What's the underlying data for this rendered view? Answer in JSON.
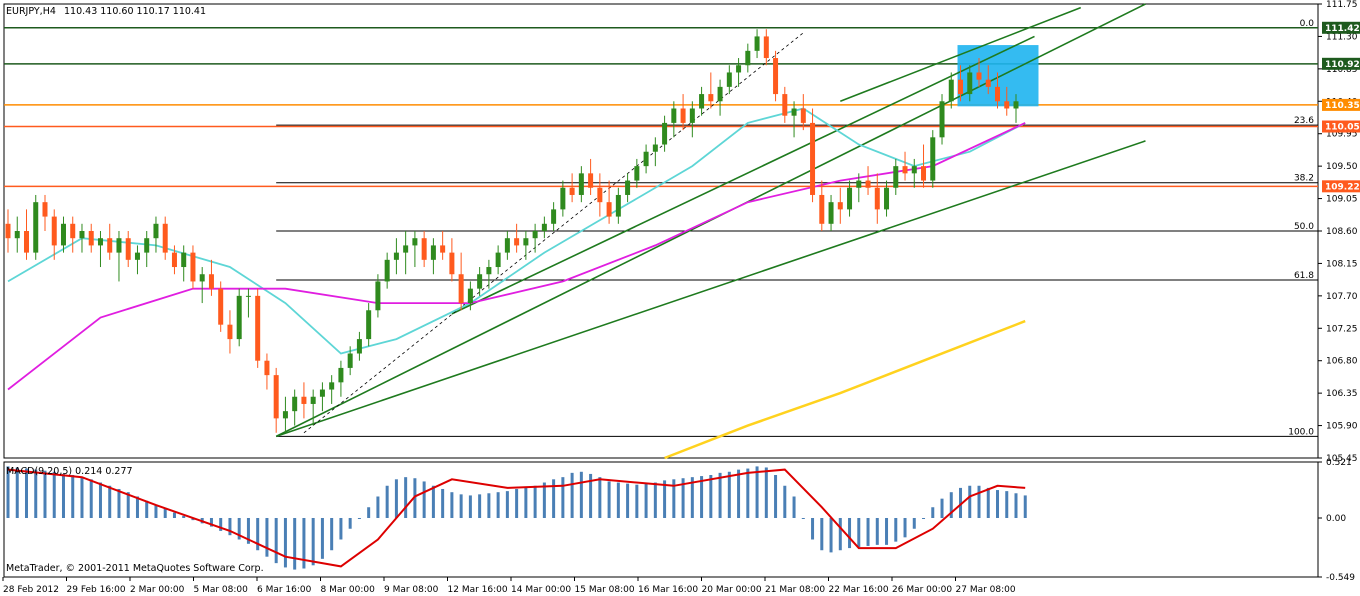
{
  "header": {
    "symbol": "EURJPY,H4",
    "ohlc": "110.43 110.60 110.17 110.41"
  },
  "macd_panel": {
    "label": "MACD(9,20,5) 0.214 0.277",
    "copyright": "MetaTrader, © 2001-2011 MetaQuotes Software Corp."
  },
  "colors": {
    "bull": "#2f8a1e",
    "bear": "#ff5a1e",
    "ma_fast": "#5ed6d6",
    "ma_mid": "#e01ee0",
    "ma_slow": "#ffd21e",
    "trend": "#1e7a1e",
    "fib_line": "#000000",
    "resistance": "#1e5a1e",
    "support_orange": "#ff5a1e",
    "highlight_box": "#1eb4f0",
    "macd_hist": "#4a7fb5",
    "macd_signal": "#dd0000"
  },
  "chart_data": [
    {
      "type": "candlestick",
      "title": "EURJPY,H4",
      "x_ticks": [
        "28 Feb 2012",
        "29 Feb 16:00",
        "2 Mar 00:00",
        "5 Mar 08:00",
        "6 Mar 16:00",
        "8 Mar 00:00",
        "9 Mar 08:00",
        "12 Mar 16:00",
        "14 Mar 00:00",
        "15 Mar 08:00",
        "16 Mar 16:00",
        "20 Mar 00:00",
        "21 Mar 08:00",
        "22 Mar 16:00",
        "26 Mar 00:00",
        "27 Mar 08:00"
      ],
      "y_ticks": [
        111.75,
        111.3,
        110.85,
        110.4,
        109.95,
        109.5,
        109.05,
        108.6,
        108.15,
        107.7,
        107.25,
        106.8,
        106.35,
        105.9,
        105.45
      ],
      "ylim": [
        105.45,
        111.75
      ],
      "price_labels": [
        {
          "text": "111.42",
          "value": 111.42,
          "color": "#1e5a1e"
        },
        {
          "text": "110.92",
          "value": 110.92,
          "color": "#1e5a1e"
        },
        {
          "text": "110.35",
          "value": 110.35,
          "color": "#ff8c00"
        },
        {
          "text": "110.05",
          "value": 110.05,
          "color": "#ff5a1e"
        },
        {
          "text": "109.22",
          "value": 109.22,
          "color": "#ff5a1e"
        }
      ],
      "fib_levels": [
        {
          "label": "0.0",
          "value": 111.42
        },
        {
          "label": "23.6",
          "value": 110.07
        },
        {
          "label": "38.2",
          "value": 109.27
        },
        {
          "label": "50.0",
          "value": 108.6
        },
        {
          "label": "61.8",
          "value": 107.92
        },
        {
          "label": "100.0",
          "value": 105.75
        }
      ],
      "candles": [
        [
          108.7,
          108.9,
          108.3,
          108.5
        ],
        [
          108.5,
          108.8,
          108.3,
          108.6
        ],
        [
          108.6,
          108.9,
          108.2,
          108.3
        ],
        [
          108.3,
          109.1,
          108.2,
          109.0
        ],
        [
          109.0,
          109.1,
          108.6,
          108.8
        ],
        [
          108.8,
          108.9,
          108.2,
          108.4
        ],
        [
          108.4,
          108.8,
          108.3,
          108.7
        ],
        [
          108.7,
          108.8,
          108.3,
          108.5
        ],
        [
          108.5,
          108.7,
          108.3,
          108.6
        ],
        [
          108.6,
          108.7,
          108.3,
          108.4
        ],
        [
          108.4,
          108.6,
          108.1,
          108.5
        ],
        [
          108.5,
          108.7,
          108.2,
          108.3
        ],
        [
          108.3,
          108.6,
          107.9,
          108.5
        ],
        [
          108.5,
          108.6,
          108.1,
          108.2
        ],
        [
          108.2,
          108.4,
          108.0,
          108.3
        ],
        [
          108.3,
          108.6,
          108.1,
          108.5
        ],
        [
          108.5,
          108.8,
          108.3,
          108.7
        ],
        [
          108.7,
          108.8,
          108.2,
          108.3
        ],
        [
          108.3,
          108.4,
          108.0,
          108.1
        ],
        [
          108.1,
          108.4,
          107.9,
          108.3
        ],
        [
          108.3,
          108.4,
          107.8,
          107.9
        ],
        [
          107.9,
          108.1,
          107.6,
          108.0
        ],
        [
          108.0,
          108.2,
          107.7,
          107.8
        ],
        [
          107.8,
          107.9,
          107.2,
          107.3
        ],
        [
          107.3,
          107.5,
          106.9,
          107.1
        ],
        [
          107.1,
          107.8,
          107.0,
          107.7
        ],
        [
          107.7,
          107.8,
          107.4,
          107.7
        ],
        [
          107.7,
          107.8,
          106.7,
          106.8
        ],
        [
          106.8,
          106.9,
          106.4,
          106.6
        ],
        [
          106.6,
          106.7,
          105.8,
          106.0
        ],
        [
          106.0,
          106.3,
          105.8,
          106.1
        ],
        [
          106.1,
          106.4,
          105.9,
          106.3
        ],
        [
          106.3,
          106.5,
          106.0,
          106.2
        ],
        [
          106.2,
          106.4,
          105.9,
          106.3
        ],
        [
          106.3,
          106.5,
          106.1,
          106.4
        ],
        [
          106.4,
          106.6,
          106.2,
          106.5
        ],
        [
          106.5,
          106.8,
          106.3,
          106.7
        ],
        [
          106.7,
          107.0,
          106.6,
          106.9
        ],
        [
          106.9,
          107.2,
          106.8,
          107.1
        ],
        [
          107.1,
          107.6,
          107.0,
          107.5
        ],
        [
          107.5,
          108.0,
          107.4,
          107.9
        ],
        [
          107.9,
          108.3,
          107.8,
          108.2
        ],
        [
          108.2,
          108.5,
          108.0,
          108.3
        ],
        [
          108.3,
          108.6,
          108.0,
          108.4
        ],
        [
          108.4,
          108.6,
          108.1,
          108.5
        ],
        [
          108.5,
          108.6,
          108.1,
          108.2
        ],
        [
          108.2,
          108.5,
          108.0,
          108.4
        ],
        [
          108.4,
          108.6,
          108.2,
          108.3
        ],
        [
          108.3,
          108.5,
          107.9,
          108.0
        ],
        [
          108.0,
          108.3,
          107.5,
          107.6
        ],
        [
          107.6,
          107.9,
          107.5,
          107.8
        ],
        [
          107.8,
          108.1,
          107.7,
          108.0
        ],
        [
          108.0,
          108.2,
          107.8,
          108.1
        ],
        [
          108.1,
          108.4,
          108.0,
          108.3
        ],
        [
          108.3,
          108.6,
          108.2,
          108.5
        ],
        [
          108.5,
          108.7,
          108.3,
          108.4
        ],
        [
          108.4,
          108.6,
          108.2,
          108.5
        ],
        [
          108.5,
          108.7,
          108.3,
          108.6
        ],
        [
          108.6,
          108.8,
          108.5,
          108.7
        ],
        [
          108.7,
          109.0,
          108.6,
          108.9
        ],
        [
          108.9,
          109.3,
          108.8,
          109.2
        ],
        [
          109.2,
          109.4,
          109.0,
          109.1
        ],
        [
          109.1,
          109.5,
          109.0,
          109.4
        ],
        [
          109.4,
          109.6,
          109.1,
          109.2
        ],
        [
          109.2,
          109.4,
          108.8,
          109.0
        ],
        [
          109.0,
          109.3,
          108.7,
          108.8
        ],
        [
          108.8,
          109.2,
          108.7,
          109.1
        ],
        [
          109.1,
          109.4,
          109.0,
          109.3
        ],
        [
          109.3,
          109.6,
          109.2,
          109.5
        ],
        [
          109.5,
          109.8,
          109.4,
          109.7
        ],
        [
          109.7,
          109.9,
          109.5,
          109.8
        ],
        [
          109.8,
          110.2,
          109.7,
          110.1
        ],
        [
          110.1,
          110.4,
          109.9,
          110.3
        ],
        [
          110.3,
          110.5,
          110.0,
          110.1
        ],
        [
          110.1,
          110.4,
          109.9,
          110.3
        ],
        [
          110.3,
          110.6,
          110.2,
          110.5
        ],
        [
          110.5,
          110.8,
          110.3,
          110.4
        ],
        [
          110.4,
          110.7,
          110.2,
          110.6
        ],
        [
          110.6,
          110.9,
          110.5,
          110.8
        ],
        [
          110.8,
          111.0,
          110.6,
          110.9
        ],
        [
          110.9,
          111.2,
          110.8,
          111.1
        ],
        [
          111.1,
          111.4,
          111.0,
          111.3
        ],
        [
          111.3,
          111.4,
          110.9,
          111.0
        ],
        [
          111.0,
          111.1,
          110.4,
          110.5
        ],
        [
          110.5,
          110.6,
          110.1,
          110.2
        ],
        [
          110.2,
          110.4,
          109.9,
          110.3
        ],
        [
          110.3,
          110.5,
          110.0,
          110.1
        ],
        [
          110.1,
          110.3,
          109.0,
          109.1
        ],
        [
          109.1,
          109.3,
          108.6,
          108.7
        ],
        [
          108.7,
          109.1,
          108.6,
          109.0
        ],
        [
          109.0,
          109.2,
          108.7,
          108.9
        ],
        [
          108.9,
          109.3,
          108.8,
          109.2
        ],
        [
          109.2,
          109.4,
          109.0,
          109.3
        ],
        [
          109.3,
          109.5,
          109.1,
          109.2
        ],
        [
          109.2,
          109.4,
          108.7,
          108.9
        ],
        [
          108.9,
          109.3,
          108.8,
          109.2
        ],
        [
          109.2,
          109.6,
          109.1,
          109.5
        ],
        [
          109.5,
          109.7,
          109.3,
          109.4
        ],
        [
          109.4,
          109.6,
          109.2,
          109.5
        ],
        [
          109.5,
          109.8,
          109.2,
          109.3
        ],
        [
          109.3,
          110.0,
          109.2,
          109.9
        ],
        [
          109.9,
          110.5,
          109.8,
          110.4
        ],
        [
          110.4,
          110.8,
          110.3,
          110.7
        ],
        [
          110.7,
          110.9,
          110.4,
          110.5
        ],
        [
          110.5,
          110.9,
          110.4,
          110.8
        ],
        [
          110.8,
          111.0,
          110.6,
          110.7
        ],
        [
          110.7,
          110.9,
          110.5,
          110.6
        ],
        [
          110.6,
          110.8,
          110.3,
          110.4
        ],
        [
          110.4,
          110.6,
          110.2,
          110.3
        ],
        [
          110.3,
          110.5,
          110.1,
          110.4
        ]
      ],
      "moving_averages": [
        {
          "name": "fast",
          "values": [
            {
              "i": 0,
              "v": 107.9
            },
            {
              "i": 8,
              "v": 108.5
            },
            {
              "i": 16,
              "v": 108.4
            },
            {
              "i": 24,
              "v": 108.1
            },
            {
              "i": 30,
              "v": 107.6
            },
            {
              "i": 36,
              "v": 106.9
            },
            {
              "i": 42,
              "v": 107.1
            },
            {
              "i": 50,
              "v": 107.6
            },
            {
              "i": 58,
              "v": 108.3
            },
            {
              "i": 66,
              "v": 108.9
            },
            {
              "i": 74,
              "v": 109.5
            },
            {
              "i": 80,
              "v": 110.1
            },
            {
              "i": 86,
              "v": 110.3
            },
            {
              "i": 92,
              "v": 109.8
            },
            {
              "i": 98,
              "v": 109.5
            },
            {
              "i": 104,
              "v": 109.7
            },
            {
              "i": 110,
              "v": 110.1
            }
          ]
        },
        {
          "name": "mid",
          "values": [
            {
              "i": 0,
              "v": 106.4
            },
            {
              "i": 10,
              "v": 107.4
            },
            {
              "i": 20,
              "v": 107.8
            },
            {
              "i": 30,
              "v": 107.8
            },
            {
              "i": 40,
              "v": 107.6
            },
            {
              "i": 50,
              "v": 107.6
            },
            {
              "i": 60,
              "v": 107.9
            },
            {
              "i": 70,
              "v": 108.4
            },
            {
              "i": 80,
              "v": 109.0
            },
            {
              "i": 90,
              "v": 109.3
            },
            {
              "i": 100,
              "v": 109.5
            },
            {
              "i": 110,
              "v": 110.1
            }
          ]
        },
        {
          "name": "slow",
          "values": [
            {
              "i": 71,
              "v": 105.45
            },
            {
              "i": 80,
              "v": 105.9
            },
            {
              "i": 90,
              "v": 106.35
            },
            {
              "i": 100,
              "v": 106.85
            },
            {
              "i": 110,
              "v": 107.35
            }
          ]
        }
      ]
    },
    {
      "type": "bar",
      "title": "MACD(9,20,5) 0.214 0.277",
      "y_ticks": [
        0.521,
        0.0,
        -0.549
      ],
      "ylim": [
        -0.549,
        0.521
      ],
      "histogram": [
        0.48,
        0.47,
        0.46,
        0.45,
        0.44,
        0.43,
        0.41,
        0.4,
        0.38,
        0.36,
        0.33,
        0.3,
        0.27,
        0.24,
        0.2,
        0.16,
        0.12,
        0.09,
        0.05,
        0.02,
        -0.02,
        -0.05,
        -0.08,
        -0.12,
        -0.16,
        -0.2,
        -0.24,
        -0.3,
        -0.36,
        -0.42,
        -0.46,
        -0.48,
        -0.47,
        -0.44,
        -0.38,
        -0.3,
        -0.2,
        -0.1,
        0.0,
        0.1,
        0.2,
        0.3,
        0.36,
        0.38,
        0.37,
        0.34,
        0.3,
        0.27,
        0.24,
        0.22,
        0.21,
        0.22,
        0.23,
        0.24,
        0.25,
        0.27,
        0.28,
        0.3,
        0.33,
        0.36,
        0.38,
        0.42,
        0.43,
        0.41,
        0.38,
        0.34,
        0.33,
        0.32,
        0.31,
        0.32,
        0.33,
        0.35,
        0.36,
        0.37,
        0.38,
        0.39,
        0.4,
        0.42,
        0.43,
        0.45,
        0.46,
        0.48,
        0.47,
        0.4,
        0.3,
        0.2,
        0.0,
        -0.2,
        -0.3,
        -0.32,
        -0.3,
        -0.28,
        -0.27,
        -0.26,
        -0.25,
        -0.25,
        -0.22,
        -0.18,
        -0.1,
        0.0,
        0.1,
        0.18,
        0.24,
        0.28,
        0.3,
        0.3,
        0.28,
        0.26,
        0.25,
        0.23,
        0.21
      ],
      "signal": [
        {
          "i": 0,
          "v": 0.45
        },
        {
          "i": 8,
          "v": 0.38
        },
        {
          "i": 16,
          "v": 0.12
        },
        {
          "i": 24,
          "v": -0.12
        },
        {
          "i": 30,
          "v": -0.36
        },
        {
          "i": 36,
          "v": -0.45
        },
        {
          "i": 40,
          "v": -0.2
        },
        {
          "i": 44,
          "v": 0.2
        },
        {
          "i": 48,
          "v": 0.36
        },
        {
          "i": 54,
          "v": 0.28
        },
        {
          "i": 60,
          "v": 0.3
        },
        {
          "i": 64,
          "v": 0.36
        },
        {
          "i": 72,
          "v": 0.3
        },
        {
          "i": 80,
          "v": 0.42
        },
        {
          "i": 84,
          "v": 0.45
        },
        {
          "i": 88,
          "v": 0.1
        },
        {
          "i": 92,
          "v": -0.28
        },
        {
          "i": 96,
          "v": -0.28
        },
        {
          "i": 100,
          "v": -0.1
        },
        {
          "i": 104,
          "v": 0.2
        },
        {
          "i": 107,
          "v": 0.3
        },
        {
          "i": 110,
          "v": 0.28
        }
      ]
    }
  ]
}
